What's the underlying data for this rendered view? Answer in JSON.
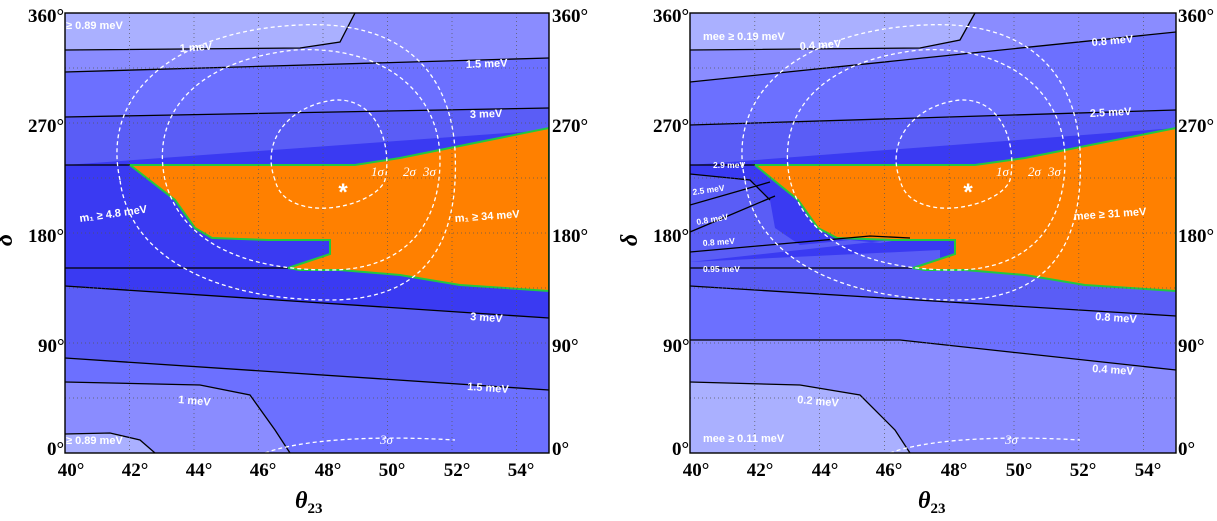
{
  "chart_data": [
    {
      "type": "contour",
      "xlabel": "θ23",
      "ylabel": "δ",
      "xlim": [
        40,
        55
      ],
      "ylim": [
        0,
        360
      ],
      "x_ticks": [
        "40°",
        "42°",
        "44°",
        "46°",
        "48°",
        "50°",
        "52°",
        "54°"
      ],
      "y_ticks": [
        "0°",
        "90°",
        "180°",
        "270°",
        "360°"
      ],
      "grid": true,
      "best_fit": {
        "symbol": "*",
        "x": 48.6,
        "y": 218
      },
      "colors": {
        "band_lightest": "#aab0ff",
        "band_light": "#8a8cff",
        "band_mid": "#6c70ff",
        "band_medium": "#5a5df6",
        "band_deep": "#3a3af2",
        "excluded": "#ff8000",
        "excluded_edge": "#22c840",
        "contour": "#000000",
        "sigma": "#ffffff"
      },
      "contour_labels": [
        "≥ 0.89 meV",
        "1 meV",
        "1.5 meV",
        "3 meV",
        "3 meV",
        "1.5 meV",
        "1 meV",
        "≥ 0.89 meV"
      ],
      "region_labels": [
        "m₁ ≥ 4.8 meV",
        "m₁ ≥ 34 meV"
      ],
      "sigma_labels": [
        "1σ",
        "2σ",
        "3σ",
        "3σ"
      ]
    },
    {
      "type": "contour",
      "xlabel": "θ23",
      "ylabel": "δ",
      "xlim": [
        40,
        55
      ],
      "ylim": [
        0,
        360
      ],
      "x_ticks": [
        "40°",
        "42°",
        "44°",
        "46°",
        "48°",
        "50°",
        "52°",
        "54°"
      ],
      "y_ticks": [
        "0°",
        "90°",
        "180°",
        "270°",
        "360°"
      ],
      "grid": true,
      "best_fit": {
        "symbol": "*",
        "x": 48.6,
        "y": 218
      },
      "colors": {
        "band_lightest": "#aab0ff",
        "band_light": "#8a8cff",
        "band_mid": "#6c70ff",
        "band_medium": "#5a5df6",
        "band_deep": "#3a3af2",
        "excluded": "#ff8000",
        "excluded_edge": "#22c840",
        "contour": "#000000",
        "sigma": "#ffffff"
      },
      "contour_labels": [
        "0.4 meV",
        "0.8 meV",
        "2.5 meV",
        "2.9 meV",
        "2.5 meV",
        "0.8 meV",
        "0.8 meV",
        "0.95 meV",
        "0.8 meV",
        "0.4 meV",
        "0.2 meV"
      ],
      "region_labels": [
        "mee ≥ 0.19 meV",
        "mee ≥ 31 meV",
        "mee ≥ 0.11 meV"
      ],
      "sigma_labels": [
        "1σ",
        "2σ",
        "3σ",
        "3σ"
      ]
    }
  ],
  "left": {
    "xlabel": "θ",
    "xlabel_sub": "23",
    "ylabel": "δ",
    "x_ticks": [
      "40°",
      "42°",
      "44°",
      "46°",
      "48°",
      "50°",
      "52°",
      "54°"
    ],
    "y_ticks": [
      "0°",
      "90°",
      "180°",
      "270°",
      "360°"
    ],
    "labels": {
      "top_left": "≥ 0.89 meV",
      "c1_top": "1 meV",
      "c15_top": "1.5 meV",
      "c3_top": "3 meV",
      "region_low": "m₁ ≥ 4.8 meV",
      "region_high": "m₁ ≥ 34 meV",
      "c3_bot": "3 meV",
      "c15_bot": "1.5 meV",
      "c1_bot": "1 meV",
      "bottom_left": "≥ 0.89 meV"
    },
    "sigma": {
      "s1": "1σ",
      "s2": "2σ",
      "s3": "3σ",
      "s3b": "3σ"
    },
    "star": "*"
  },
  "right": {
    "xlabel": "θ",
    "xlabel_sub": "23",
    "ylabel": "δ",
    "x_ticks": [
      "40°",
      "42°",
      "44°",
      "46°",
      "48°",
      "50°",
      "52°",
      "54°"
    ],
    "y_ticks": [
      "0°",
      "90°",
      "180°",
      "270°",
      "360°"
    ],
    "labels": {
      "top_left": "mee ≥ 0.19 meV",
      "c04_top": "0.4 meV",
      "c08_top": "0.8 meV",
      "c25_top": "2.5 meV",
      "c29": "2.9 meV",
      "c25_low": "2.5 meV",
      "c08_a": "0.8 meV",
      "c08_b": "0.8 meV",
      "c095": "0.95 meV",
      "region_high": "mee ≥ 31 meV",
      "c08_bot": "0.8 meV",
      "c04_bot": "0.4 meV",
      "c02_bot": "0.2 meV",
      "bottom_left": "mee ≥ 0.11 meV"
    },
    "sigma": {
      "s1": "1σ",
      "s2": "2σ",
      "s3": "3σ",
      "s3b": "3σ"
    },
    "star": "*"
  }
}
